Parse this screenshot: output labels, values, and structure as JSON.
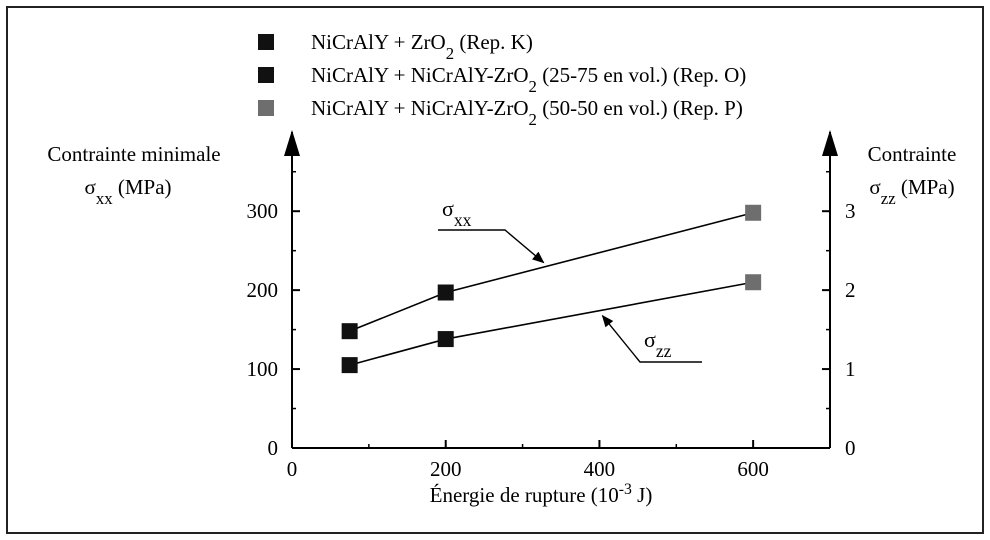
{
  "chart_data": {
    "type": "scatter",
    "legend": [
      {
        "parts": [
          {
            "text": "NiCrAlY + ZrO"
          },
          {
            "text": "2",
            "sub": true
          },
          {
            "text": " (Rep. K)"
          }
        ],
        "color": "#111111"
      },
      {
        "parts": [
          {
            "text": "NiCrAlY + NiCrAlY-ZrO"
          },
          {
            "text": "2",
            "sub": true
          },
          {
            "text": " (25-75 en vol.) (Rep. O)"
          }
        ],
        "color": "#111111"
      },
      {
        "parts": [
          {
            "text": "NiCrAlY + NiCrAlY-ZrO"
          },
          {
            "text": "2",
            "sub": true
          },
          {
            "text": " (50-50 en vol.) (Rep. P)"
          }
        ],
        "color": "#6e6e6e"
      }
    ],
    "legend_position": "top",
    "ylabel_left_line1": "Contrainte minimale",
    "ylabel_left_line2": {
      "sym": "σ",
      "sub": "xx",
      "unit": " (MPa)"
    },
    "ylabel_right_line1": "Contrainte",
    "ylabel_right_line2": {
      "sym": "σ",
      "sub": "zz",
      "unit": " (MPa)"
    },
    "xlabel": {
      "text": "Énergie de rupture (10",
      "sup": "-3",
      "tail": " J)"
    },
    "xlim": [
      0,
      700
    ],
    "ylim_left": [
      0,
      375
    ],
    "ylim_right": [
      0,
      3.75
    ],
    "x_ticks": [
      0,
      200,
      400,
      600
    ],
    "y_ticks_left": [
      0,
      100,
      200,
      300
    ],
    "y_ticks_right": [
      0,
      1,
      2,
      3
    ],
    "grid": false,
    "series": [
      {
        "name": "σxx",
        "axis": "left",
        "x": [
          75,
          200,
          600
        ],
        "y": [
          148,
          197,
          298
        ],
        "marker_colors": [
          "#111111",
          "#111111",
          "#6e6e6e"
        ],
        "annotation": {
          "sym": "σ",
          "sub": "xx",
          "at_x": 330
        }
      },
      {
        "name": "σzz",
        "axis": "right",
        "x": [
          75,
          200,
          600
        ],
        "y": [
          1.05,
          1.38,
          2.1
        ],
        "marker_colors": [
          "#111111",
          "#111111",
          "#6e6e6e"
        ],
        "annotation": {
          "sym": "σ",
          "sub": "zz",
          "at_x": 400
        }
      }
    ]
  }
}
